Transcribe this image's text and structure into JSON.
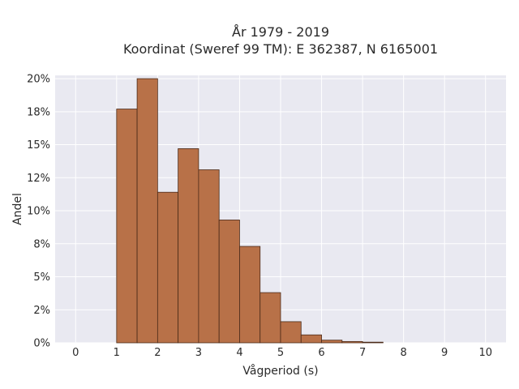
{
  "chart_data": {
    "type": "bar",
    "title_line1": "År 1979 - 2019",
    "title_line2": "Koordinat (Sweref 99 TM): E 362387, N 6165001",
    "xlabel": "Vågperiod (s)",
    "ylabel": "Andel",
    "xlim": [
      -0.5,
      10.5
    ],
    "ylim": [
      0,
      20.25
    ],
    "x_ticks": [
      0,
      1,
      2,
      3,
      4,
      5,
      6,
      7,
      8,
      9,
      10
    ],
    "y_ticks": [
      {
        "value": 0,
        "label": "0%"
      },
      {
        "value": 2.5,
        "label": "2%"
      },
      {
        "value": 5,
        "label": "5%"
      },
      {
        "value": 7.5,
        "label": "8%"
      },
      {
        "value": 10,
        "label": "10%"
      },
      {
        "value": 12.5,
        "label": "12%"
      },
      {
        "value": 15,
        "label": "15%"
      },
      {
        "value": 17.5,
        "label": "18%"
      },
      {
        "value": 20,
        "label": "20%"
      }
    ],
    "bin_width": 0.5,
    "bins": [
      {
        "start": 1.0,
        "value": 17.7
      },
      {
        "start": 1.5,
        "value": 20.0
      },
      {
        "start": 2.0,
        "value": 11.4
      },
      {
        "start": 2.5,
        "value": 14.7
      },
      {
        "start": 3.0,
        "value": 13.1
      },
      {
        "start": 3.5,
        "value": 9.3
      },
      {
        "start": 4.0,
        "value": 7.3
      },
      {
        "start": 4.5,
        "value": 3.8
      },
      {
        "start": 5.0,
        "value": 1.6
      },
      {
        "start": 5.5,
        "value": 0.6
      },
      {
        "start": 6.0,
        "value": 0.2
      },
      {
        "start": 6.5,
        "value": 0.1
      },
      {
        "start": 7.0,
        "value": 0.05
      }
    ],
    "grid": true,
    "colors": {
      "plot_bg": "#e9e9f1",
      "grid": "#ffffff",
      "bar_fill": "#b87148",
      "bar_edge": "#4a2a18"
    }
  }
}
